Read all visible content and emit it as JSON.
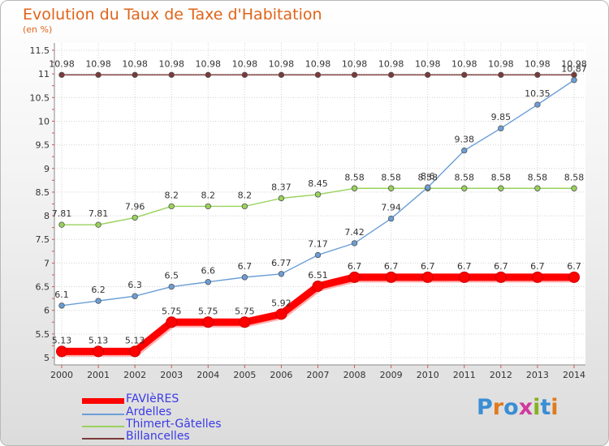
{
  "title": "Evolution du Taux de Taxe d'Habitation",
  "unit": "(en %)",
  "brand": "Proxiti",
  "brand_colors": [
    "#3a8ed4",
    "#e07a1e",
    "#3a8ed4",
    "#d03a9e",
    "#86b020",
    "#3a8ed4",
    "#e07a1e"
  ],
  "chart_data": {
    "type": "line",
    "x": [
      2000,
      2001,
      2002,
      2003,
      2004,
      2005,
      2006,
      2007,
      2008,
      2009,
      2010,
      2011,
      2012,
      2013,
      2014
    ],
    "ylim": [
      5,
      11.5
    ],
    "y_ticks": [
      "5",
      "5.5",
      "6",
      "6.5",
      "7",
      "7.5",
      "8",
      "8.5",
      "9",
      "9.5",
      "10",
      "10.5",
      "11",
      "11.5"
    ],
    "x_ticks": [
      "2000",
      "2001",
      "2002",
      "2003",
      "2004",
      "2005",
      "2006",
      "2007",
      "2008",
      "2009",
      "2010",
      "2011",
      "2012",
      "2013",
      "2014"
    ],
    "grid": true,
    "legend_position": "bottom-left",
    "series": [
      {
        "name": "FAVIèRES",
        "color": "#ff0000",
        "values": [
          5.13,
          5.13,
          5.13,
          5.75,
          5.75,
          5.75,
          5.92,
          6.51,
          6.7,
          6.7,
          6.7,
          6.7,
          6.7,
          6.7,
          6.7
        ],
        "labels": [
          "5.13",
          "5.13",
          "5.13",
          "5.75",
          "5.75",
          "5.75",
          "5.92",
          "6.51",
          "6.7",
          "6.7",
          "6.7",
          "6.7",
          "6.7",
          "6.7",
          "6.7"
        ]
      },
      {
        "name": "Ardelles",
        "color": "#6b9ed6",
        "values": [
          6.1,
          6.2,
          6.3,
          6.5,
          6.6,
          6.7,
          6.77,
          7.17,
          7.42,
          7.94,
          8.6,
          9.38,
          9.85,
          10.35,
          10.87
        ],
        "labels": [
          "6.1",
          "6.2",
          "6.3",
          "6.5",
          "6.6",
          "6.7",
          "6.77",
          "7.17",
          "7.42",
          "7.94",
          "8.6",
          "9.38",
          "9.85",
          "10.35",
          "10.87"
        ]
      },
      {
        "name": "Thimert-Gâtelles",
        "color": "#99d25b",
        "values": [
          7.81,
          7.81,
          7.96,
          8.2,
          8.2,
          8.2,
          8.37,
          8.45,
          8.58,
          8.58,
          8.58,
          8.58,
          8.58,
          8.58,
          8.58
        ],
        "labels": [
          "7.81",
          "7.81",
          "7.96",
          "8.2",
          "8.2",
          "8.2",
          "8.37",
          "8.45",
          "8.58",
          "8.58",
          "8.58",
          "8.58",
          "8.58",
          "8.58",
          "8.58"
        ]
      },
      {
        "name": "Billancelles",
        "color": "#7a3a3a",
        "values": [
          10.98,
          10.98,
          10.98,
          10.98,
          10.98,
          10.98,
          10.98,
          10.98,
          10.98,
          10.98,
          10.98,
          10.98,
          10.98,
          10.98,
          10.98
        ],
        "labels": [
          "10.98",
          "10.98",
          "10.98",
          "10.98",
          "10.98",
          "10.98",
          "10.98",
          "10.98",
          "10.98",
          "10.98",
          "10.98",
          "10.98",
          "10.98",
          "10.98",
          "10.98"
        ]
      }
    ]
  }
}
